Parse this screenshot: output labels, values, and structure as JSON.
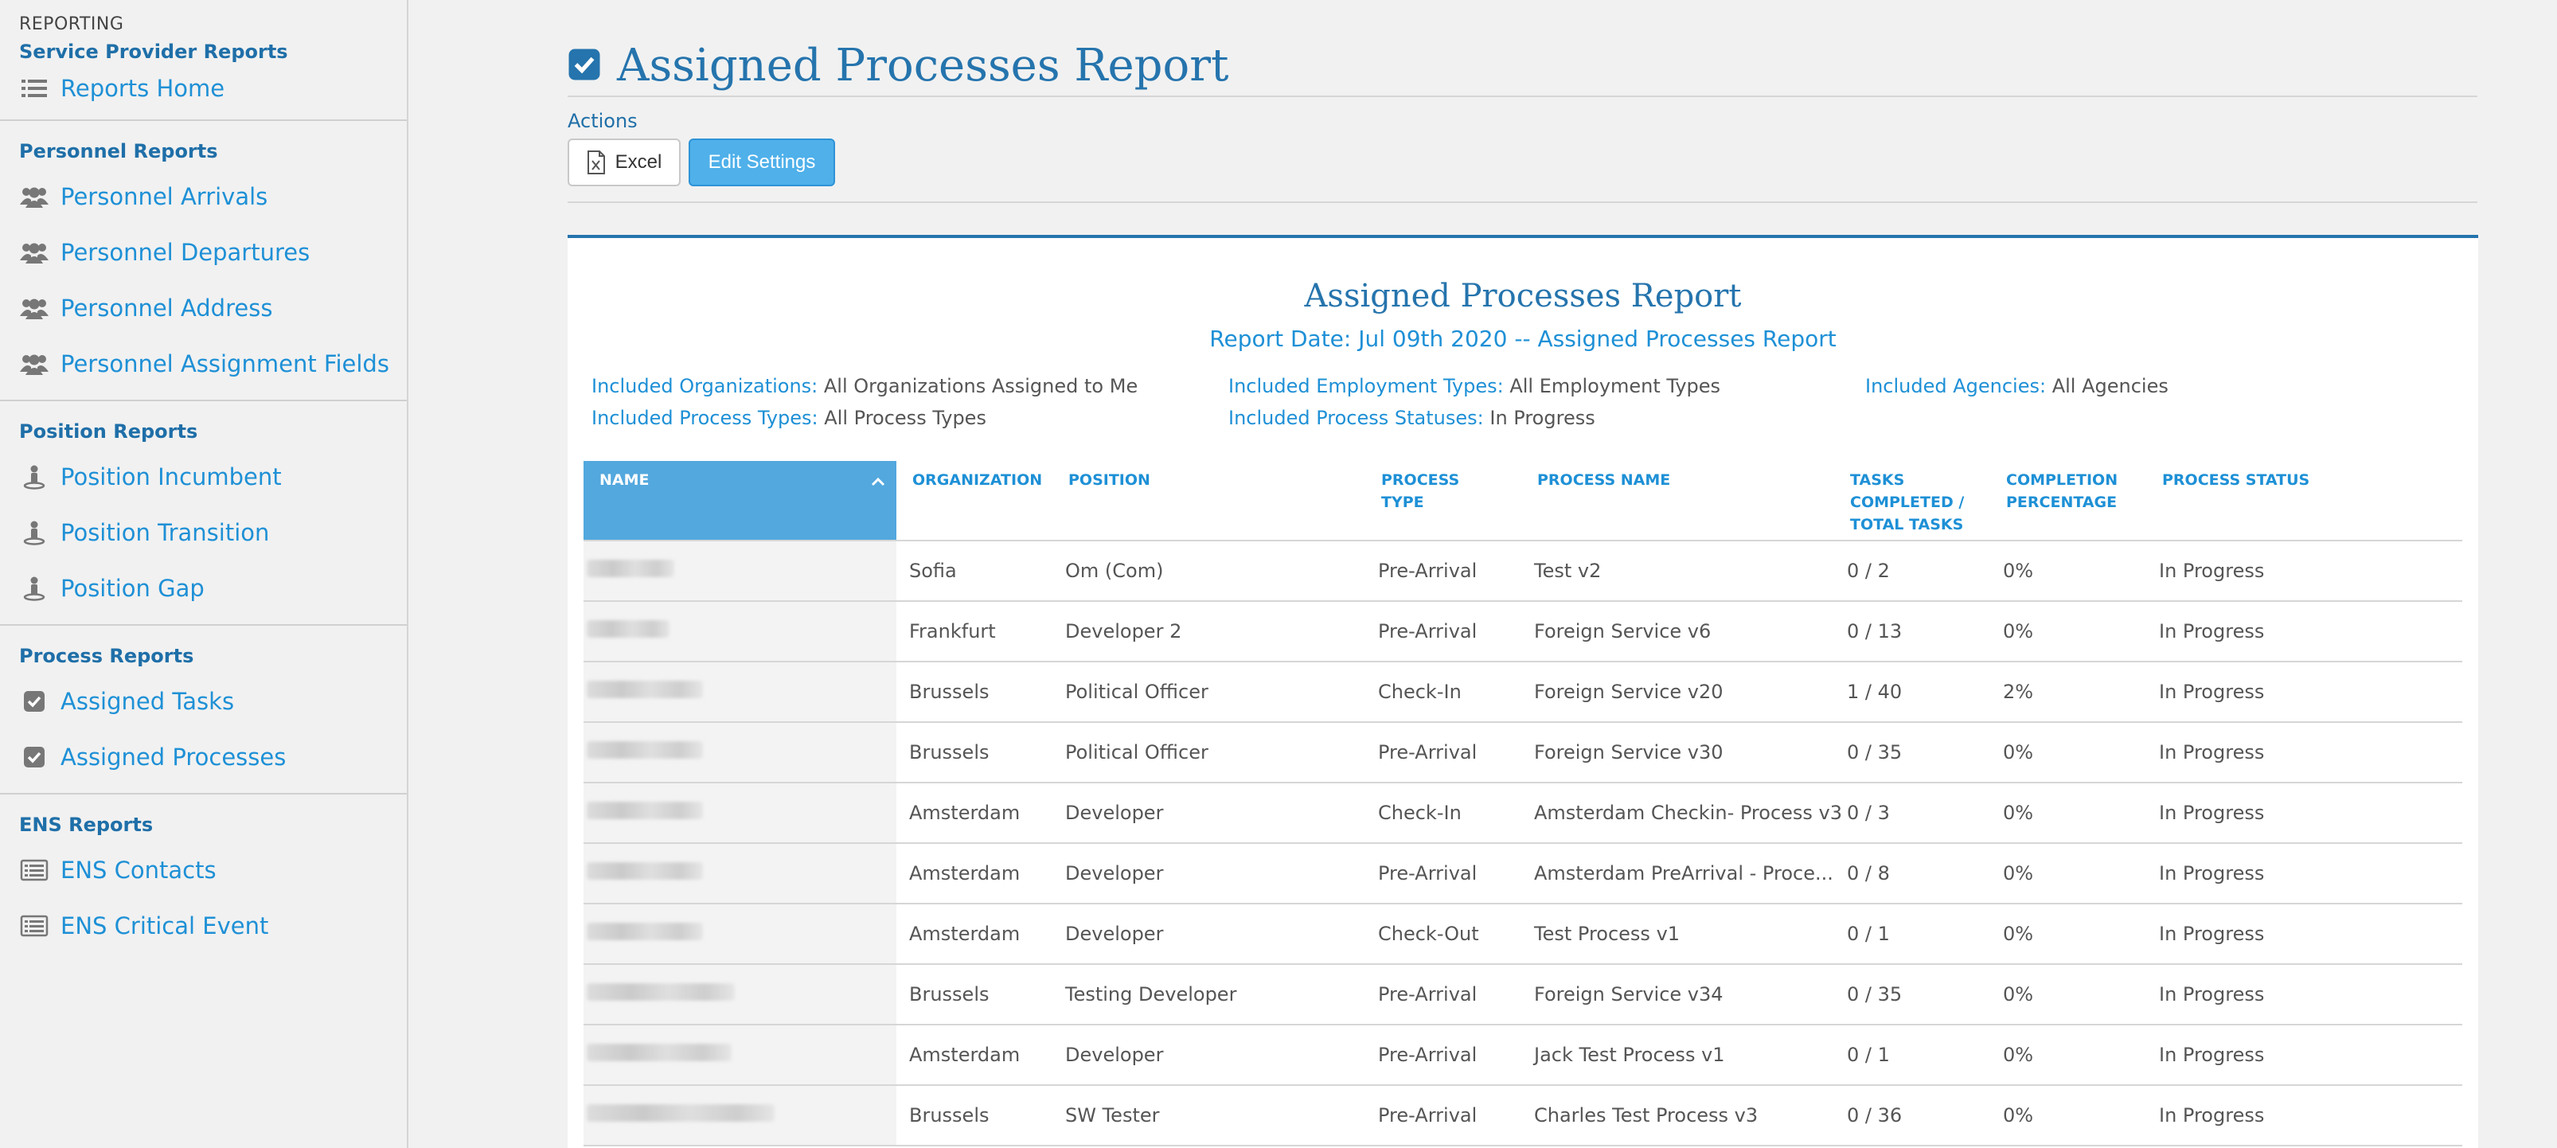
{
  "sidebar": {
    "top_label": "REPORTING",
    "sections": [
      {
        "heading": "Service Provider Reports",
        "items": [
          {
            "label": "Reports Home",
            "icon": "list-icon"
          }
        ]
      },
      {
        "heading": "Personnel Reports",
        "items": [
          {
            "label": "Personnel Arrivals",
            "icon": "users-icon"
          },
          {
            "label": "Personnel Departures",
            "icon": "users-icon"
          },
          {
            "label": "Personnel Address",
            "icon": "users-icon"
          },
          {
            "label": "Personnel Assignment Fields",
            "icon": "users-icon"
          }
        ]
      },
      {
        "heading": "Position Reports",
        "items": [
          {
            "label": "Position Incumbent",
            "icon": "person-pin-icon"
          },
          {
            "label": "Position Transition",
            "icon": "person-pin-icon"
          },
          {
            "label": "Position Gap",
            "icon": "person-pin-icon"
          }
        ]
      },
      {
        "heading": "Process Reports",
        "items": [
          {
            "label": "Assigned Tasks",
            "icon": "checkbox-icon"
          },
          {
            "label": "Assigned Processes",
            "icon": "checkbox-icon"
          }
        ]
      },
      {
        "heading": "ENS Reports",
        "items": [
          {
            "label": "ENS Contacts",
            "icon": "list-box-icon"
          },
          {
            "label": "ENS Critical Event",
            "icon": "list-box-icon"
          }
        ]
      }
    ]
  },
  "page": {
    "title": "Assigned Processes Report",
    "title_icon": "checkbox-icon",
    "actions_label": "Actions",
    "excel_label": "Excel",
    "edit_settings_label": "Edit Settings"
  },
  "report": {
    "title": "Assigned Processes Report",
    "date_line": "Report Date: Jul 09th 2020 -- Assigned Processes Report",
    "filters": {
      "organizations": {
        "label": "Included Organizations:",
        "value": "All Organizations Assigned to Me"
      },
      "employment_types": {
        "label": "Included Employment Types:",
        "value": "All Employment Types"
      },
      "agencies": {
        "label": "Included Agencies:",
        "value": "All Agencies"
      },
      "process_types": {
        "label": "Included Process Types:",
        "value": "All Process Types"
      },
      "process_statuses": {
        "label": "Included Process Statuses:",
        "value": "In Progress"
      }
    },
    "columns": {
      "name": "NAME",
      "organization": "ORGANIZATION",
      "position": "POSITION",
      "process_type": "PROCESS TYPE",
      "process_name": "PROCESS NAME",
      "tasks": "TASKS COMPLETED / TOTAL TASKS",
      "completion": "COMPLETION PERCENTAGE",
      "status": "PROCESS STATUS"
    },
    "rows": [
      {
        "organization": "Sofia",
        "position": "Om (Com)",
        "process_type": "Pre-Arrival",
        "process_name": "Test v2",
        "tasks": "0 / 2",
        "completion": "0%",
        "status": "In Progress"
      },
      {
        "organization": "Frankfurt",
        "position": "Developer 2",
        "process_type": "Pre-Arrival",
        "process_name": "Foreign Service v6",
        "tasks": "0 / 13",
        "completion": "0%",
        "status": "In Progress"
      },
      {
        "organization": "Brussels",
        "position": "Political Officer",
        "process_type": "Check-In",
        "process_name": "Foreign Service v20",
        "tasks": "1 / 40",
        "completion": "2%",
        "status": "In Progress"
      },
      {
        "organization": "Brussels",
        "position": "Political Officer",
        "process_type": "Pre-Arrival",
        "process_name": "Foreign Service v30",
        "tasks": "0 / 35",
        "completion": "0%",
        "status": "In Progress"
      },
      {
        "organization": "Amsterdam",
        "position": "Developer",
        "process_type": "Check-In",
        "process_name": "Amsterdam Checkin- Process v3",
        "tasks": "0 / 3",
        "completion": "0%",
        "status": "In Progress"
      },
      {
        "organization": "Amsterdam",
        "position": "Developer",
        "process_type": "Pre-Arrival",
        "process_name": "Amsterdam PreArrival - Proce...",
        "tasks": "0 / 8",
        "completion": "0%",
        "status": "In Progress"
      },
      {
        "organization": "Amsterdam",
        "position": "Developer",
        "process_type": "Check-Out",
        "process_name": "Test Process v1",
        "tasks": "0 / 1",
        "completion": "0%",
        "status": "In Progress"
      },
      {
        "organization": "Brussels",
        "position": "Testing Developer",
        "process_type": "Pre-Arrival",
        "process_name": "Foreign Service v34",
        "tasks": "0 / 35",
        "completion": "0%",
        "status": "In Progress"
      },
      {
        "organization": "Amsterdam",
        "position": "Developer",
        "process_type": "Pre-Arrival",
        "process_name": "Jack Test Process v1",
        "tasks": "0 / 1",
        "completion": "0%",
        "status": "In Progress"
      },
      {
        "organization": "Brussels",
        "position": "SW Tester",
        "process_type": "Pre-Arrival",
        "process_name": "Charles Test Process v3",
        "tasks": "0 / 36",
        "completion": "0%",
        "status": "In Progress"
      }
    ]
  },
  "colors": {
    "accent": "#2574ad",
    "link": "#1e90d6",
    "button_primary": "#4fb0ea",
    "header_active": "#53a8de"
  }
}
